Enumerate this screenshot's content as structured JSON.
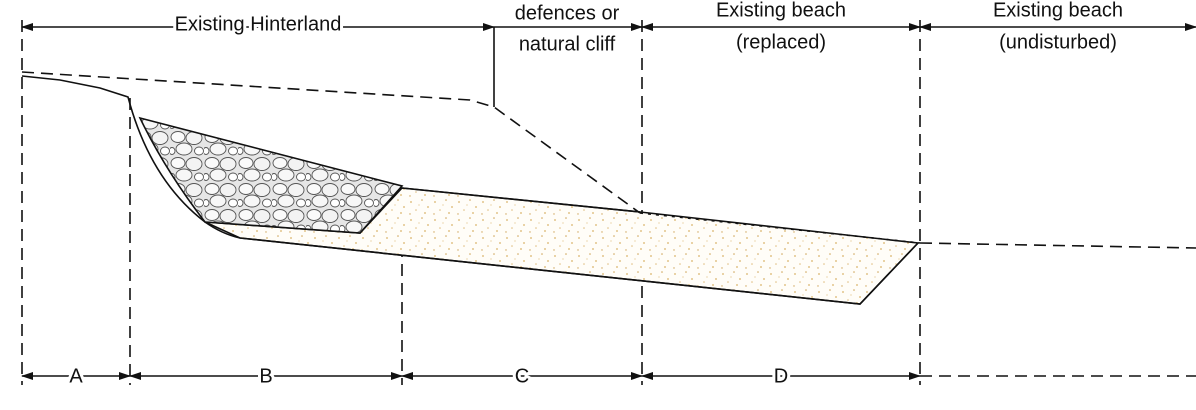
{
  "top_labels": [
    {
      "lines": [
        "Existing Hinterland"
      ]
    },
    {
      "lines": [
        "defences or",
        "natural cliff"
      ]
    },
    {
      "lines": [
        "Existing beach",
        "(replaced)"
      ]
    },
    {
      "lines": [
        "Existing beach",
        "(undisturbed)"
      ]
    }
  ],
  "bottom_labels": [
    "A",
    "B",
    "C",
    "D"
  ]
}
